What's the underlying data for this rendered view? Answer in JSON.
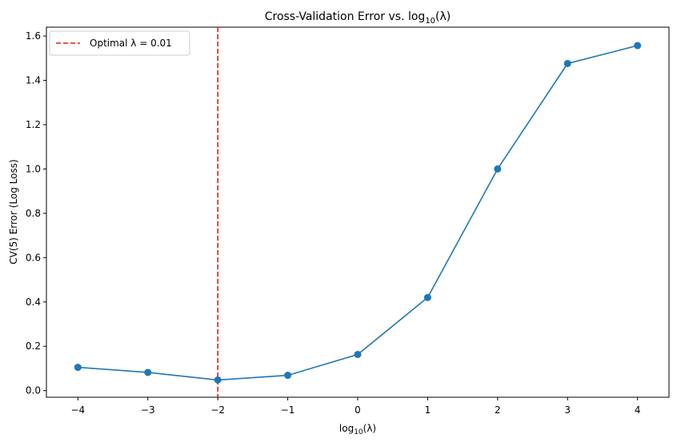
{
  "chart_data": {
    "type": "line",
    "title_prefix": "Cross-Validation Error vs. log",
    "title_sub": "10",
    "title_suffix": "(λ)",
    "xlabel_prefix": "log",
    "xlabel_sub": "10",
    "xlabel_suffix": "(λ)",
    "ylabel": "CV(5) Error (Log Loss)",
    "xlim": [
      -4.45,
      4.45
    ],
    "ylim": [
      -0.03,
      1.64
    ],
    "x_ticks": [
      -4,
      -3,
      -2,
      -1,
      0,
      1,
      2,
      3,
      4
    ],
    "x_tick_labels": [
      "−4",
      "−3",
      "−2",
      "−1",
      "0",
      "1",
      "2",
      "3",
      "4"
    ],
    "y_ticks": [
      0.0,
      0.2,
      0.4,
      0.6,
      0.8,
      1.0,
      1.2,
      1.4,
      1.6
    ],
    "y_tick_labels": [
      "0.0",
      "0.2",
      "0.4",
      "0.6",
      "0.8",
      "1.0",
      "1.2",
      "1.4",
      "1.6"
    ],
    "grid": false,
    "legend_position": "top-left",
    "series": [
      {
        "x": [
          -4,
          -3,
          -2,
          -1,
          0,
          1,
          2,
          3,
          4
        ],
        "values": [
          0.105,
          0.082,
          0.048,
          0.069,
          0.163,
          0.42,
          1.0,
          1.476,
          1.557
        ],
        "color": "#1f77b4",
        "marker": "circle"
      }
    ],
    "reference_lines": [
      {
        "orientation": "vertical",
        "x": -2,
        "label": "Optimal λ = 0.01",
        "color": "#e41a1c",
        "style": "dashed"
      }
    ]
  }
}
